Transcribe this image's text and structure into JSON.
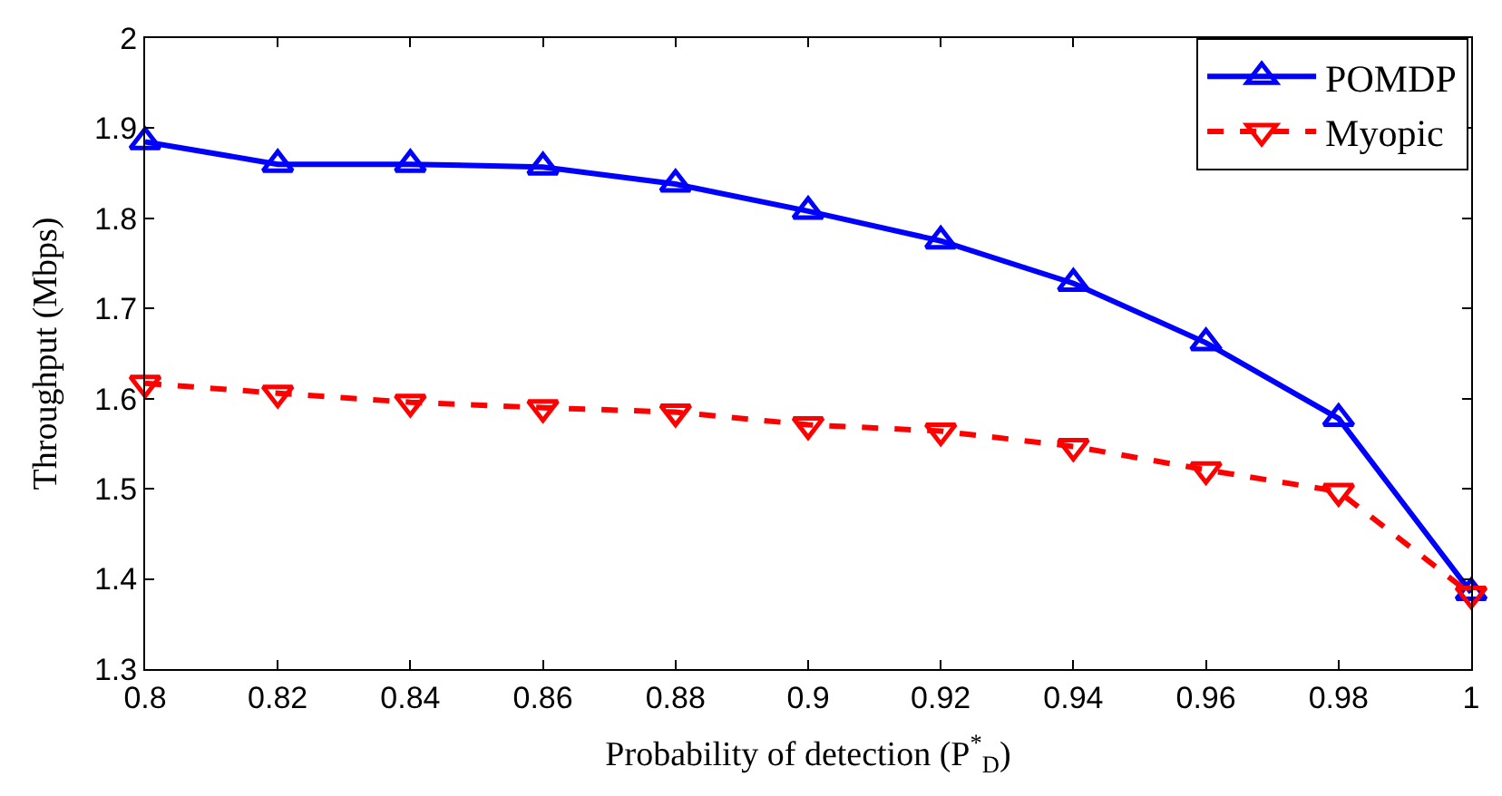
{
  "chart_data": {
    "type": "line",
    "xlabel": "Probability of detection (P$^{*}$$_{D}$)",
    "ylabel": "Throughput (Mbps)",
    "x": [
      0.8,
      0.82,
      0.84,
      0.86,
      0.88,
      0.9,
      0.92,
      0.94,
      0.96,
      0.98,
      1
    ],
    "series": [
      {
        "name": "POMDP",
        "color": "#0000ff",
        "marker": "triangle-up",
        "line_style": "solid",
        "values": [
          1.885,
          1.86,
          1.86,
          1.857,
          1.838,
          1.808,
          1.775,
          1.728,
          1.662,
          1.578,
          1.385
        ]
      },
      {
        "name": "Myopic",
        "color": "#ff0000",
        "marker": "triangle-down",
        "line_style": "dashed",
        "values": [
          1.617,
          1.606,
          1.596,
          1.59,
          1.585,
          1.571,
          1.564,
          1.547,
          1.521,
          1.497,
          1.383
        ]
      }
    ],
    "xlim": [
      0.8,
      1
    ],
    "xticks": [
      0.8,
      0.82,
      0.84,
      0.86,
      0.88,
      0.9,
      0.92,
      0.94,
      0.96,
      0.98,
      1
    ],
    "ylim": [
      1.3,
      2
    ],
    "yticks": [
      1.3,
      1.4,
      1.5,
      1.6,
      1.7,
      1.8,
      1.9,
      2
    ],
    "legend": "top right"
  }
}
